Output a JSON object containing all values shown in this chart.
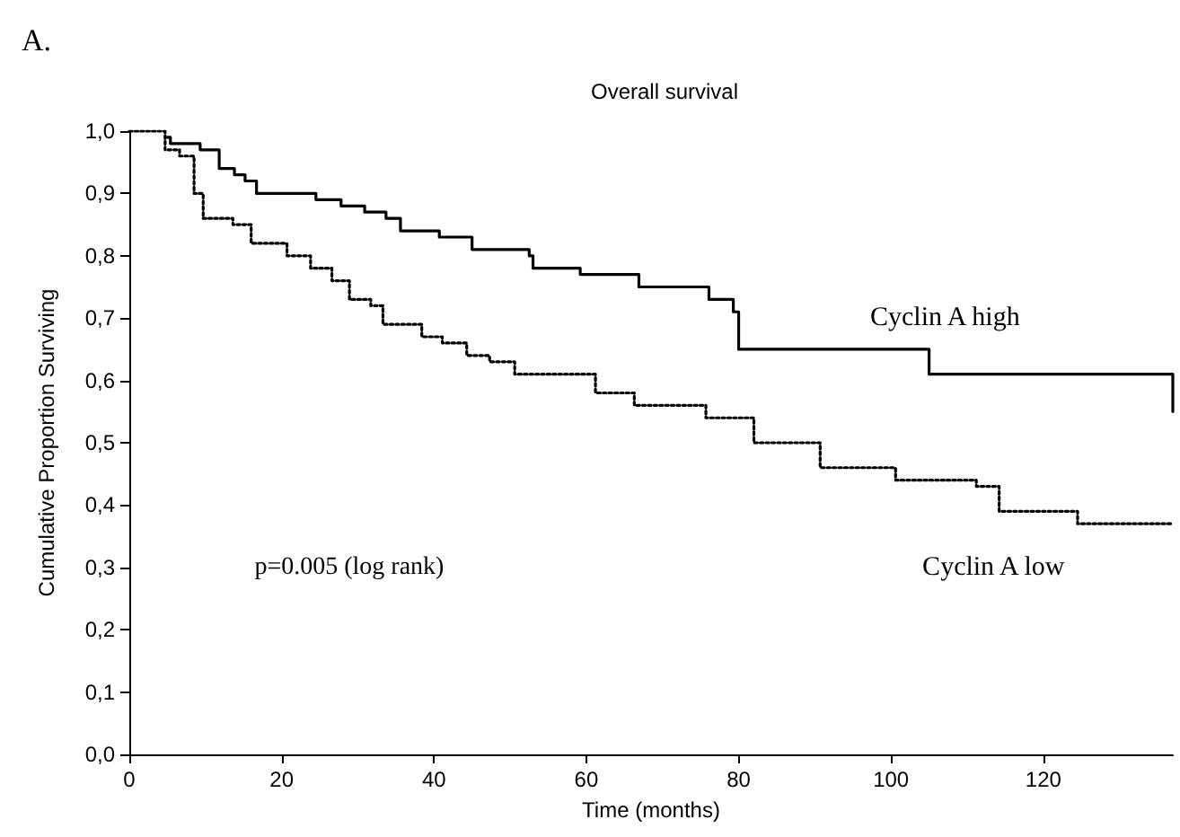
{
  "chart_data": {
    "type": "step",
    "title": "Overall survival",
    "xlabel": "Time (months)",
    "ylabel": "Cumulative Proportion Surviving",
    "annotations": [
      "A.",
      "p=0.005 (log rank)"
    ],
    "xlim": [
      0,
      137
    ],
    "xticks": [
      0,
      20,
      40,
      60,
      80,
      100,
      120
    ],
    "ylim": [
      0,
      1
    ],
    "yticks": [
      {
        "value": 0,
        "label": "0,0"
      },
      {
        "value": 0.1,
        "label": "0,1"
      },
      {
        "value": 0.2,
        "label": "0,2"
      },
      {
        "value": 0.3,
        "label": "0,3"
      },
      {
        "value": 0.4,
        "label": "0,4"
      },
      {
        "value": 0.5,
        "label": "0,5"
      },
      {
        "value": 0.6,
        "label": "0,6"
      },
      {
        "value": 0.7,
        "label": "0,7"
      },
      {
        "value": 0.8,
        "label": "0,8"
      },
      {
        "value": 0.9,
        "label": "0,9"
      },
      {
        "value": 1,
        "label": "1,0"
      }
    ],
    "grid": false,
    "legend": false,
    "marker": "none",
    "series": [
      {
        "name": "Cyclin A high",
        "color": "#000000",
        "line_style": "solid",
        "x": [
          5,
          5.4,
          9.3,
          11.8,
          13.8,
          15.2,
          16.7,
          24.5,
          27.8,
          30.9,
          33.7,
          35.6,
          40.7,
          45,
          52.5,
          53,
          59.2,
          66.9,
          76.1,
          79.3,
          80,
          105,
          137,
          137
        ],
        "values": [
          0.99,
          0.98,
          0.97,
          0.94,
          0.93,
          0.92,
          0.9,
          0.89,
          0.88,
          0.87,
          0.86,
          0.84,
          0.83,
          0.81,
          0.8,
          0.78,
          0.77,
          0.75,
          0.73,
          0.71,
          0.65,
          0.61,
          0.61,
          0.55
        ]
      },
      {
        "name": "Cyclin A low",
        "color": "#000000",
        "line_style": "dotted",
        "x": [
          0,
          4.7,
          6.6,
          8.5,
          9.7,
          13.6,
          16,
          20.7,
          23.8,
          26.6,
          28.9,
          31.7,
          33.3,
          38.4,
          41.1,
          44.3,
          47.3,
          50.6,
          61.2,
          66.3,
          75.7,
          82,
          90.7,
          100.6,
          111.2,
          114.2,
          124.5,
          137
        ],
        "values": [
          1,
          0.97,
          0.96,
          0.9,
          0.86,
          0.85,
          0.82,
          0.8,
          0.78,
          0.76,
          0.73,
          0.72,
          0.69,
          0.67,
          0.66,
          0.64,
          0.63,
          0.61,
          0.58,
          0.56,
          0.54,
          0.5,
          0.46,
          0.44,
          0.43,
          0.39,
          0.37,
          0.37
        ]
      }
    ]
  }
}
